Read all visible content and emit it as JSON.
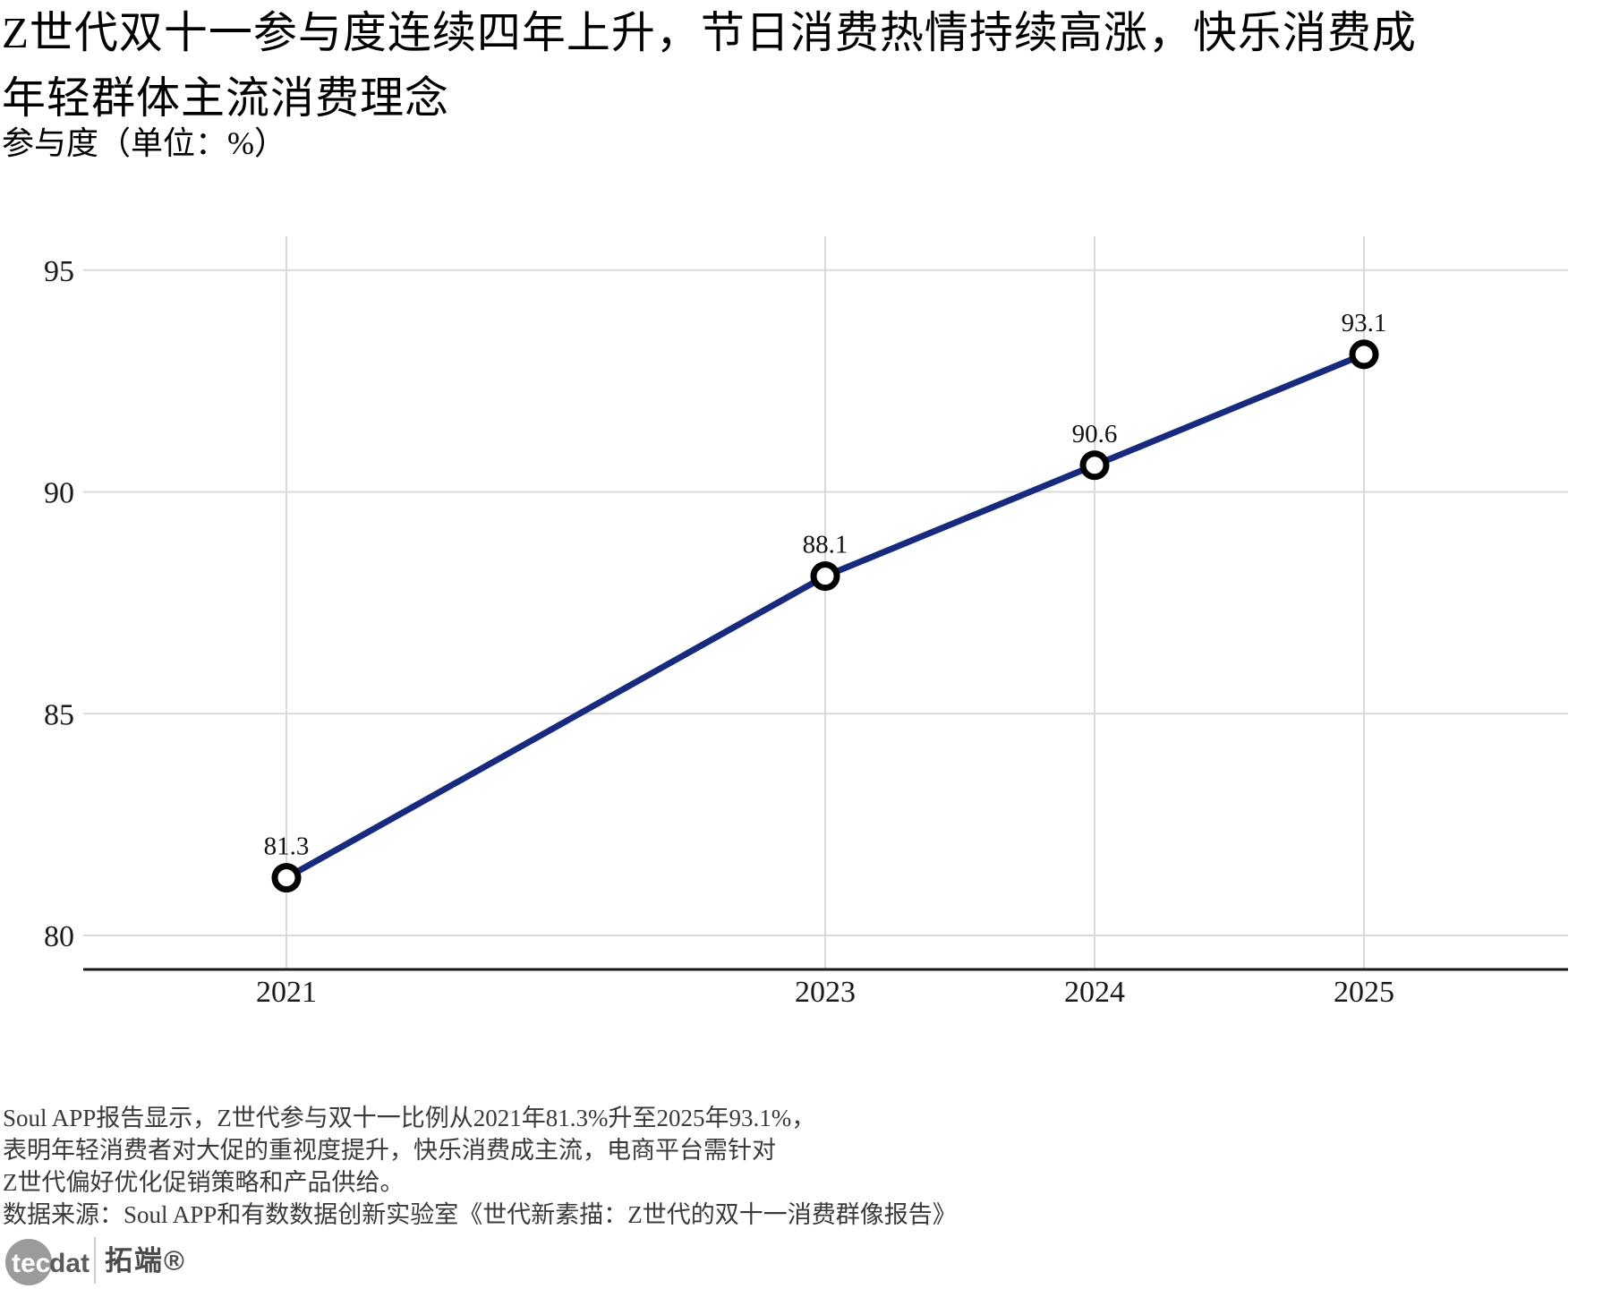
{
  "title": {
    "lines": [
      "Z世代双十一参与度连续四年上升，节日消费热情持续高涨，快乐消费成",
      "年轻群体主流消费理念"
    ]
  },
  "subtitle": "参与度（单位：%）",
  "chart_data": {
    "type": "line",
    "title": "Z世代双十一参与度连续四年上升，节日消费热情持续高涨，快乐消费成年轻群体主流消费理念",
    "ylabel": "参与度（单位：%）",
    "x": [
      2021,
      2023,
      2024,
      2025
    ],
    "x_labels": [
      "2021",
      "2023",
      "2024",
      "2025"
    ],
    "series": [
      {
        "name": "参与度",
        "values": [
          81.3,
          88.1,
          90.6,
          93.1
        ]
      }
    ],
    "point_labels": [
      "81.3",
      "88.1",
      "90.6",
      "93.1"
    ],
    "yticks": [
      95,
      90,
      85,
      80
    ],
    "ylim": [
      79.3,
      96.6
    ],
    "grid": true,
    "legend": "none",
    "line_color": "#182a7d",
    "marker": "open-circle",
    "marker_color": "#000000",
    "gridline_color": "#d9d9d9",
    "axis_color": "#1a1a1a"
  },
  "footnote": {
    "lines": [
      "Soul APP报告显示，Z世代参与双十一比例从2021年81.3%升至2025年93.1%，",
      "表明年轻消费者对大促的重视度提升，快乐消费成主流，电商平台需针对",
      "Z世代偏好优化促销策略和产品供给。",
      "数据来源：Soul APP和有数数据创新实验室《世代新素描：Z世代的双十一消费群像报告》"
    ]
  },
  "logo": {
    "circle_text": "tec",
    "wordmark_rest": "dat",
    "cn_name": "拓端®"
  }
}
